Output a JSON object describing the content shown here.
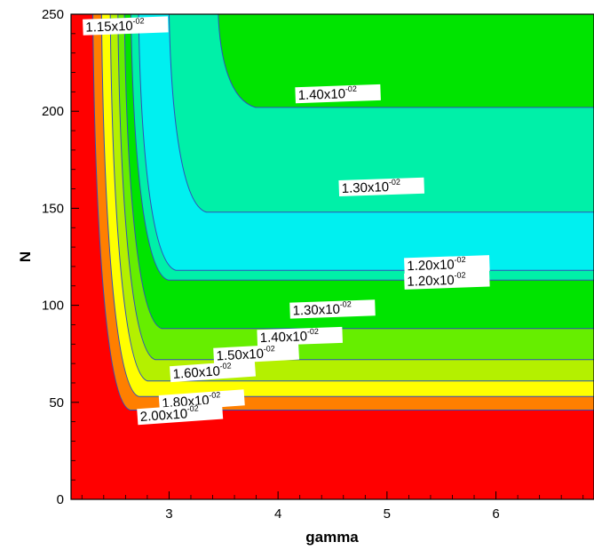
{
  "chart_data": {
    "type": "heatmap",
    "subtype": "filled-contour",
    "title": "",
    "xlabel": "gamma",
    "ylabel": "N",
    "xlim": [
      2.1,
      6.9
    ],
    "ylim": [
      0,
      250
    ],
    "x_ticks": [
      3,
      4,
      5,
      6
    ],
    "y_ticks": [
      0,
      50,
      100,
      150,
      200,
      250
    ],
    "grid": false,
    "legend": "none",
    "contour_colors": {
      "red": "#ff0000",
      "orange": "#ff7f00",
      "yellow": "#ffff00",
      "yellow_green": "#b4f000",
      "light_green": "#66ee00",
      "green": "#00e400",
      "aqua_green": "#00f0a8",
      "cyan": "#00f0f0",
      "line": "#3050b8"
    },
    "bands": [
      {
        "color": "red",
        "asymptote_y": 42,
        "asymptote_x": 2.1
      },
      {
        "color": "orange",
        "asymptote_y": 46,
        "asymptote_x": 2.3
      },
      {
        "color": "yellow",
        "asymptote_y": 53,
        "asymptote_x": 2.38
      },
      {
        "color": "yellow_green",
        "asymptote_y": 61,
        "asymptote_x": 2.46
      },
      {
        "color": "light_green",
        "asymptote_y": 72,
        "asymptote_x": 2.53
      },
      {
        "color": "green",
        "asymptote_y": 88,
        "asymptote_x": 2.59
      },
      {
        "color": "aqua_green",
        "asymptote_y": 113,
        "asymptote_x": 2.65
      },
      {
        "color": "cyan",
        "asymptote_y": 118,
        "asymptote_x": 2.72
      },
      {
        "color": "aqua_green",
        "asymptote_y": 148,
        "asymptote_x": 3.0
      },
      {
        "color": "green",
        "asymptote_y": 202,
        "asymptote_x": 3.45
      }
    ],
    "labels": [
      {
        "base": "1.15x10",
        "exp": "-02",
        "gamma": 2.6,
        "N": 244,
        "rotate": -2
      },
      {
        "base": "1.40x10",
        "exp": "-02",
        "gamma": 4.55,
        "N": 209,
        "rotate": -2
      },
      {
        "base": "1.30x10",
        "exp": "-02",
        "gamma": 4.95,
        "N": 161,
        "rotate": -2
      },
      {
        "base": "1.20x10",
        "exp": "-02",
        "gamma": 5.55,
        "N": 121,
        "rotate": -2
      },
      {
        "base": "1.20x10",
        "exp": "-02",
        "gamma": 5.55,
        "N": 113,
        "rotate": -2
      },
      {
        "base": "1.30x10",
        "exp": "-02",
        "gamma": 4.5,
        "N": 98,
        "rotate": -2
      },
      {
        "base": "1.40x10",
        "exp": "-02",
        "gamma": 4.2,
        "N": 84,
        "rotate": -2
      },
      {
        "base": "1.50x10",
        "exp": "-02",
        "gamma": 3.8,
        "N": 75,
        "rotate": -3
      },
      {
        "base": "1.60x10",
        "exp": "-02",
        "gamma": 3.4,
        "N": 66,
        "rotate": -4
      },
      {
        "base": "1.80x10",
        "exp": "-02",
        "gamma": 3.3,
        "N": 51,
        "rotate": -4
      },
      {
        "base": "2.00x10",
        "exp": "-02",
        "gamma": 3.1,
        "N": 44,
        "rotate": -4
      }
    ]
  }
}
